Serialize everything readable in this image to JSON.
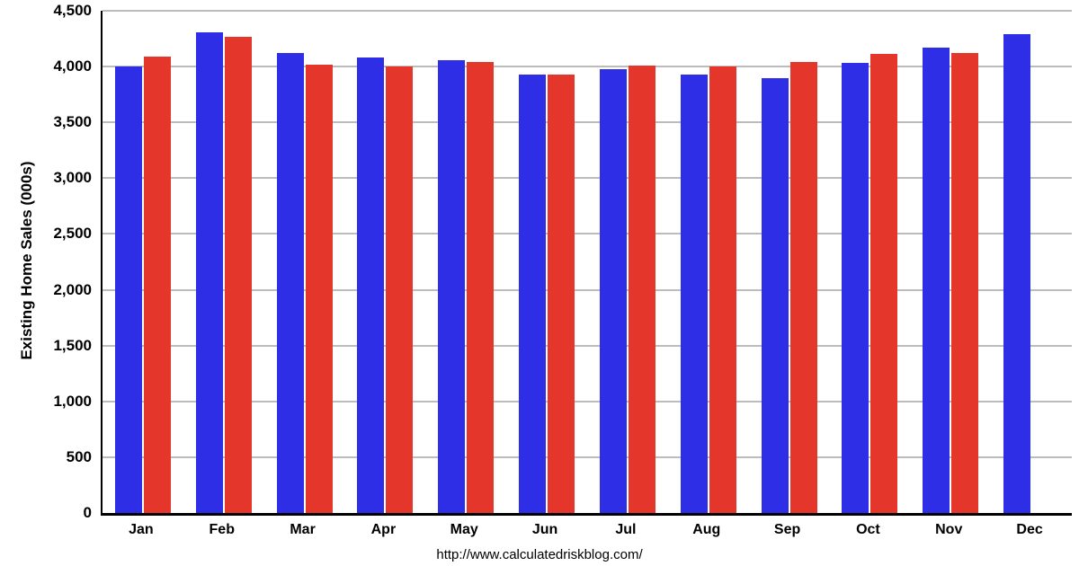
{
  "page": {
    "background": "#ffffff"
  },
  "chart_data": {
    "type": "bar",
    "title": "",
    "xlabel": "",
    "ylabel": "Existing Home Sales (000s)",
    "source_text": "http://www.calculatedriskblog.com/",
    "ylim": [
      0,
      4500
    ],
    "ytick_interval": 500,
    "grid": true,
    "legend_position": "none",
    "yticks": [
      {
        "v": 0,
        "label": "0"
      },
      {
        "v": 500,
        "label": "500"
      },
      {
        "v": 1000,
        "label": "1,000"
      },
      {
        "v": 1500,
        "label": "1,500"
      },
      {
        "v": 2000,
        "label": "2,000"
      },
      {
        "v": 2500,
        "label": "2,500"
      },
      {
        "v": 3000,
        "label": "3,000"
      },
      {
        "v": 3500,
        "label": "3,500"
      },
      {
        "v": 4000,
        "label": "4,000"
      },
      {
        "v": 4500,
        "label": "4,500"
      }
    ],
    "categories": [
      "Jan",
      "Feb",
      "Mar",
      "Apr",
      "May",
      "Jun",
      "Jul",
      "Aug",
      "Sep",
      "Oct",
      "Nov",
      "Dec"
    ],
    "series": [
      {
        "name": "blue-series",
        "color": "#2e2ee6",
        "values": [
          4000,
          4310,
          4120,
          4080,
          4060,
          3930,
          3980,
          3930,
          3900,
          4030,
          4170,
          4290
        ]
      },
      {
        "name": "red-series",
        "color": "#e5362b",
        "values": [
          4090,
          4270,
          4020,
          4000,
          4040,
          3930,
          4010,
          4000,
          4040,
          4110,
          4120,
          null
        ]
      }
    ]
  },
  "colors": {
    "grid": "#bcbcbc",
    "axis": "#000000"
  }
}
